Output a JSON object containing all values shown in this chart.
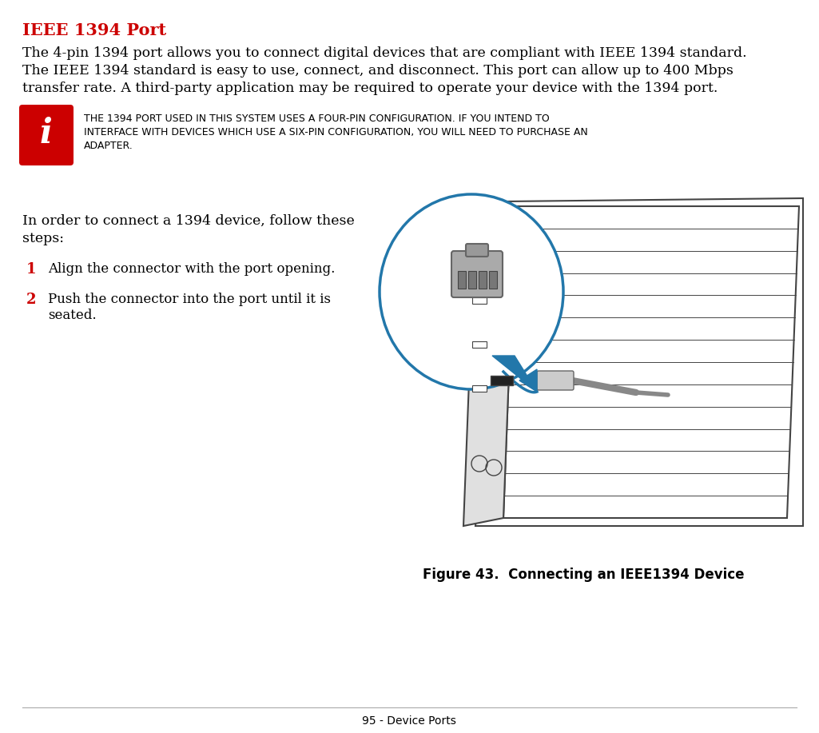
{
  "bg_color": "#ffffff",
  "title": "IEEE 1394 Port",
  "title_color": "#cc0000",
  "body_line1": "The 4-pin 1394 port allows you to connect digital devices that are compliant with IEEE 1394 standard.",
  "body_line2": "The IEEE 1394 standard is easy to use, connect, and disconnect. This port can allow up to 400 Mbps",
  "body_line3": "transfer rate. A third-party application may be required to operate your device with the 1394 port.",
  "note_line1": "THE 1394 PORT USED IN THIS SYSTEM USES A FOUR-PIN CONFIGURATION. IF YOU INTEND TO",
  "note_line2": "INTERFACE WITH DEVICES WHICH USE A SIX-PIN CONFIGURATION, YOU WILL NEED TO PURCHASE AN",
  "note_line3": "ADAPTER.",
  "steps_intro1": "In order to connect a 1394 device, follow these",
  "steps_intro2": "steps:",
  "step1_num": "1",
  "step1_text": "Align the connector with the port opening.",
  "step2_num": "2",
  "step2_text1": "Push the connector into the port until it is",
  "step2_text2": "seated.",
  "figure_caption": "Figure 43.  Connecting an IEEE1394 Device",
  "footer": "95 - Device Ports",
  "red_color": "#cc0000",
  "blue_color": "#2277aa",
  "black_color": "#000000",
  "dark_gray": "#444444",
  "med_gray": "#888888",
  "light_gray": "#bbbbbb",
  "icon_bg": "#cc0000"
}
